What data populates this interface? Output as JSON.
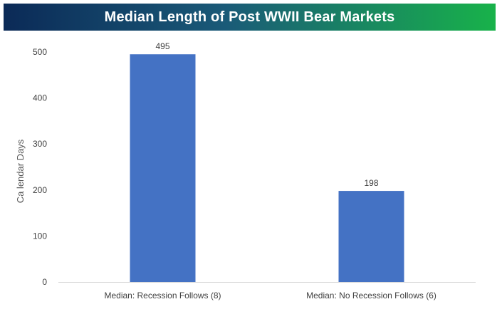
{
  "chart_data": {
    "type": "bar",
    "title": "Median Length of Post WWII Bear Markets",
    "xlabel": "",
    "ylabel": "Ca lendar Days",
    "categories": [
      "Median: Recession Follows (8)",
      "Median: No Recession Follows (6)"
    ],
    "values": [
      495,
      198
    ],
    "data_labels": [
      "495",
      "198"
    ],
    "yticks": [
      0,
      100,
      200,
      300,
      400,
      500
    ],
    "ylim": [
      0,
      500
    ],
    "grid": false,
    "legend": "none",
    "bar_color": "#4472c4"
  },
  "colors": {
    "banner_start": "#0b2a57",
    "banner_mid": "#1a5a78",
    "banner_end": "#18b24a",
    "axis_line": "#d9d9d9"
  }
}
